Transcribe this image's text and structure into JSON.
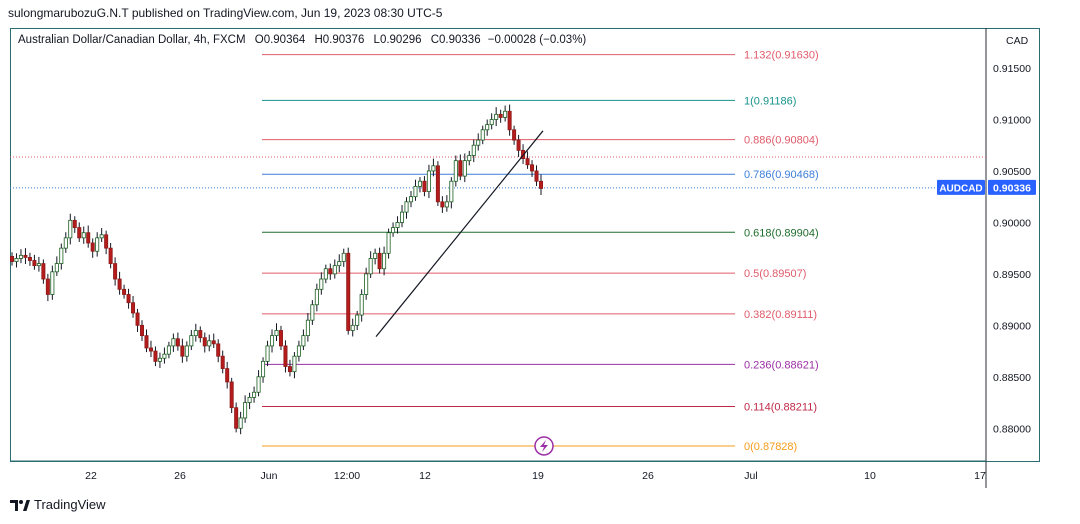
{
  "header": {
    "published": "sulongmarubozuG.N.T published on TradingView.com, Jun 19, 2023 08:30 UTC-5"
  },
  "legend": {
    "instrument": "Australian Dollar/Canadian Dollar, 4h, FXCM",
    "open": "O0.90364",
    "high": "H0.90376",
    "low": "L0.90296",
    "close": "C0.90336",
    "change": "−0.00028 (−0.03%)"
  },
  "footer": {
    "brand": "TradingView",
    "logo_icon": "tradingview-logo-icon"
  },
  "chart_data": {
    "type": "candlestick",
    "currency_label": "CAD",
    "y_ticks": [
      "0.91500",
      "0.91000",
      "0.90500",
      "0.90000",
      "0.89500",
      "0.89000",
      "0.88500",
      "0.88000"
    ],
    "y_tick_values": [
      0.915,
      0.91,
      0.905,
      0.9,
      0.895,
      0.89,
      0.885,
      0.88
    ],
    "ylim": [
      0.8775,
      0.9185
    ],
    "x_ticks": [
      "22",
      "26",
      "Jun",
      "12:00",
      "12",
      "19",
      "26",
      "Jul",
      "10",
      "17"
    ],
    "last_price": {
      "symbol": "AUDCAD",
      "value": "0.90336",
      "price": 0.90336
    },
    "previous_close_price": 0.90635,
    "fibonacci": [
      {
        "label": "1.132(0.91630)",
        "price": 0.9163,
        "color": "#e05b6a"
      },
      {
        "label": "1(0.91186)",
        "price": 0.91186,
        "color": "#17938c"
      },
      {
        "label": "0.886(0.90804)",
        "price": 0.90804,
        "color": "#e05b6a"
      },
      {
        "label": "0.786(0.90468)",
        "price": 0.90468,
        "color": "#3d7fd8"
      },
      {
        "label": "0.618(0.89904)",
        "price": 0.89904,
        "color": "#1f6d2b"
      },
      {
        "label": "0.5(0.89507)",
        "price": 0.89507,
        "color": "#e05b6a"
      },
      {
        "label": "0.382(0.89111)",
        "price": 0.89111,
        "color": "#e05b6a"
      },
      {
        "label": "0.236(0.88621)",
        "price": 0.88621,
        "color": "#9b2fa5"
      },
      {
        "label": "0.114(0.88211)",
        "price": 0.88211,
        "color": "#c02a48"
      },
      {
        "label": "0(0.87828)",
        "price": 0.87828,
        "color": "#f59c1a"
      }
    ],
    "trendline": {
      "from_price": 0.8889,
      "to_price": 0.9089
    },
    "event_icon": "lightning-icon",
    "candles_close": [
      0.8962,
      0.8965,
      0.8968,
      0.8966,
      0.8963,
      0.8958,
      0.896,
      0.8945,
      0.893,
      0.8952,
      0.896,
      0.8975,
      0.8985,
      0.9002,
      0.8995,
      0.8985,
      0.899,
      0.898,
      0.8972,
      0.8985,
      0.8988,
      0.8975,
      0.896,
      0.8945,
      0.8935,
      0.893,
      0.8922,
      0.8912,
      0.89,
      0.889,
      0.8878,
      0.8875,
      0.8865,
      0.8868,
      0.8872,
      0.888,
      0.8887,
      0.888,
      0.887,
      0.888,
      0.889,
      0.8895,
      0.8888,
      0.888,
      0.8885,
      0.8882,
      0.887,
      0.8858,
      0.8845,
      0.882,
      0.88,
      0.881,
      0.8825,
      0.883,
      0.8835,
      0.885,
      0.8865,
      0.888,
      0.889,
      0.8895,
      0.888,
      0.886,
      0.8855,
      0.887,
      0.888,
      0.889,
      0.8905,
      0.892,
      0.8935,
      0.8945,
      0.8955,
      0.895,
      0.8958,
      0.8962,
      0.897,
      0.8895,
      0.89,
      0.891,
      0.893,
      0.895,
      0.8965,
      0.897,
      0.8955,
      0.897,
      0.899,
      0.8995,
      0.9,
      0.901,
      0.902,
      0.9025,
      0.9035,
      0.904,
      0.903,
      0.905,
      0.9055,
      0.902,
      0.9015,
      0.902,
      0.904,
      0.906,
      0.9045,
      0.906,
      0.9065,
      0.9075,
      0.908,
      0.909,
      0.9095,
      0.91,
      0.9105,
      0.9102,
      0.9108,
      0.909,
      0.908,
      0.907,
      0.9062,
      0.9056,
      0.905,
      0.904,
      0.9033
    ]
  }
}
